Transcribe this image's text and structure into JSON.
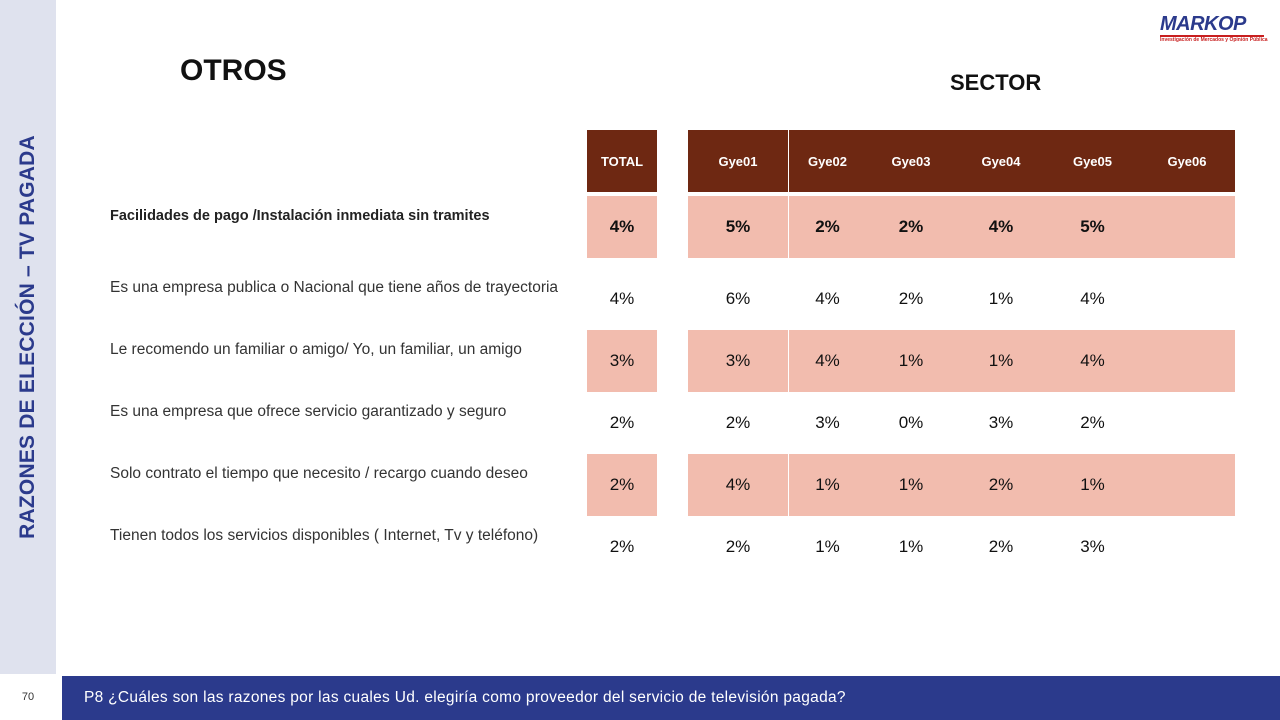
{
  "sidebar": {
    "title": "RAZONES DE ELECCIÓN – TV PAGADA"
  },
  "logo": {
    "name": "MARKOP",
    "tagline": "Investigación de Mercados y Opinión Pública"
  },
  "header": {
    "title": "OTROS",
    "sector_label": "SECTOR"
  },
  "table": {
    "columns": [
      "TOTAL",
      "Gye01",
      "Gye02",
      "Gye03",
      "Gye04",
      "Gye05",
      "Gye06"
    ],
    "rows": [
      {
        "label": "Facilidades de pago /Instalación inmediata sin tramites",
        "values": [
          "4%",
          "5%",
          "2%",
          "2%",
          "4%",
          "5%",
          ""
        ]
      },
      {
        "label": "Es una empresa publica o Nacional  que tiene años de trayectoria",
        "values": [
          "4%",
          "6%",
          "4%",
          "2%",
          "1%",
          "4%",
          ""
        ]
      },
      {
        "label": "Le recomendo un familiar o amigo/ Yo, un familiar, un amigo",
        "values": [
          "3%",
          "3%",
          "4%",
          "1%",
          "1%",
          "4%",
          ""
        ]
      },
      {
        "label": "Es una empresa que ofrece servicio garantizado y seguro",
        "values": [
          "2%",
          "2%",
          "3%",
          "0%",
          "3%",
          "2%",
          ""
        ]
      },
      {
        "label": "Solo contrato el tiempo que necesito / recargo cuando deseo",
        "values": [
          "2%",
          "4%",
          "1%",
          "1%",
          "2%",
          "1%",
          ""
        ]
      },
      {
        "label": "Tienen todos los servicios disponibles ( Internet, Tv y teléfono)",
        "values": [
          "2%",
          "2%",
          "1%",
          "1%",
          "2%",
          "3%",
          ""
        ]
      }
    ]
  },
  "footer": {
    "page_number": "70",
    "question": "P8 ¿Cuáles son las razones por las cuales Ud. elegiría como proveedor del servicio de televisión pagada?"
  }
}
